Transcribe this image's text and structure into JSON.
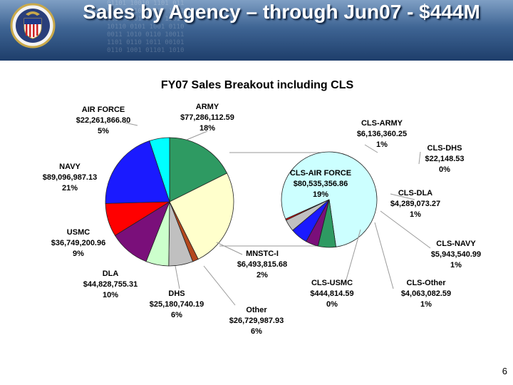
{
  "slide": {
    "title": "Sales by Agency – through Jun07 - $444M",
    "page_number": "6"
  },
  "colors": {
    "header_dark": "#1e3e6b",
    "header_light": "#7f9fc4"
  },
  "chart_data": [
    {
      "type": "pie",
      "title": "FY07 Sales Breakout including CLS",
      "slices": [
        {
          "name": "ARMY",
          "value": 77286112.59,
          "amount": "$77,286,112.59",
          "percent": "18%",
          "color": "#2e9a62"
        },
        {
          "name": "CLS",
          "value": 109455285.48,
          "amount": "",
          "percent": "",
          "color": "#ffffcc"
        },
        {
          "name": "MNSTC-I",
          "value": 6493815.68,
          "amount": "$6,493,815.68",
          "percent": "2%",
          "color": "#b5481c"
        },
        {
          "name": "Other",
          "value": 26729987.93,
          "amount": "$26,729,987.93",
          "percent": "6%",
          "color": "#c0c0c0"
        },
        {
          "name": "DHS",
          "value": 25180740.19,
          "amount": "$25,180,740.19",
          "percent": "6%",
          "color": "#ccffcc"
        },
        {
          "name": "DLA",
          "value": 44828755.31,
          "amount": "$44,828,755.31",
          "percent": "10%",
          "color": "#7a0f7a"
        },
        {
          "name": "USMC",
          "value": 36749200.96,
          "amount": "$36,749,200.96",
          "percent": "9%",
          "color": "#ff0000"
        },
        {
          "name": "NAVY",
          "value": 89096987.13,
          "amount": "$89,096,987.13",
          "percent": "21%",
          "color": "#1a1aff"
        },
        {
          "name": "AIR FORCE",
          "value": 22261866.8,
          "amount": "$22,261,866.80",
          "percent": "5%",
          "color": "#00ffff"
        }
      ]
    },
    {
      "type": "pie",
      "title": "",
      "slices": [
        {
          "name": "CLS-AIR FORCE",
          "value": 80535356.86,
          "amount": "$80,535,356.86",
          "percent": "19%",
          "color": "#ccffff"
        },
        {
          "name": "CLS-ARMY",
          "value": 6136360.25,
          "amount": "$6,136,360.25",
          "percent": "1%",
          "color": "#2e9a62"
        },
        {
          "name": "CLS-DHS",
          "value": 22148.53,
          "amount": "$22,148.53",
          "percent": "0%",
          "color": "#ffffcc"
        },
        {
          "name": "CLS-DLA",
          "value": 4289073.27,
          "amount": "$4,289,073.27",
          "percent": "1%",
          "color": "#7a0f7a"
        },
        {
          "name": "CLS-NAVY",
          "value": 5943540.99,
          "amount": "$5,943,540.99",
          "percent": "1%",
          "color": "#1a1aff"
        },
        {
          "name": "CLS-Other",
          "value": 4063082.59,
          "amount": "$4,063,082.59",
          "percent": "1%",
          "color": "#c0c0c0"
        },
        {
          "name": "CLS-USMC",
          "value": 444814.59,
          "amount": "$444,814.59",
          "percent": "0%",
          "color": "#ff0000"
        }
      ]
    }
  ]
}
